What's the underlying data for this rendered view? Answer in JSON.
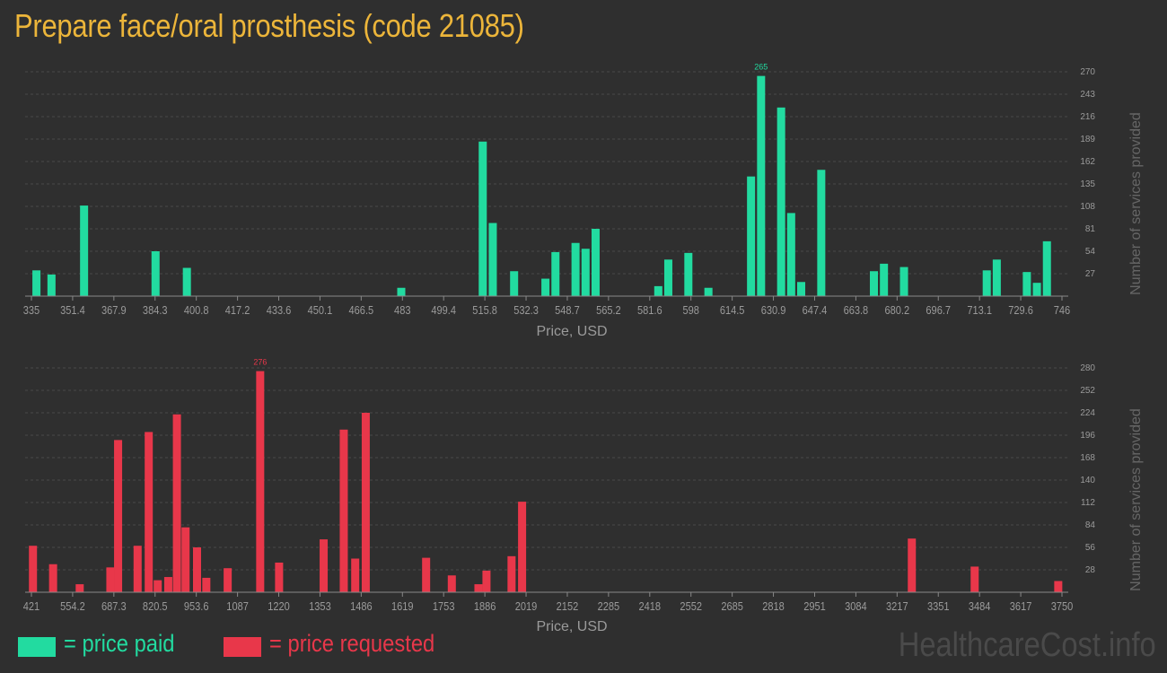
{
  "title": "Prepare face/oral prosthesis (code 21085)",
  "colors": {
    "paid": "#22dba0",
    "requested": "#e8374a",
    "title": "#ecb53a",
    "axis_text": "#9a9a9a",
    "grid": "#4a4a4a",
    "background": "#2f2f2f"
  },
  "legend": {
    "paid_label": "= price paid",
    "requested_label": "= price requested"
  },
  "watermark": "HealthcareCost.info",
  "chart_data": [
    {
      "type": "bar",
      "name": "price paid",
      "color": "#22dba0",
      "xlabel": "Price, USD",
      "ylabel": "Number of services provided",
      "xlim": [
        335,
        746
      ],
      "ylim": [
        0,
        270
      ],
      "grid": true,
      "x_ticks": [
        "335",
        "351.4",
        "367.9",
        "384.3",
        "400.8",
        "417.2",
        "433.6",
        "450.1",
        "466.5",
        "483",
        "499.4",
        "515.8",
        "532.3",
        "548.7",
        "565.2",
        "581.6",
        "598",
        "614.5",
        "630.9",
        "647.4",
        "663.8",
        "680.2",
        "696.7",
        "713.1",
        "729.6",
        "746"
      ],
      "y_ticks": [
        "27",
        "54",
        "81",
        "108",
        "135",
        "162",
        "189",
        "216",
        "243",
        "270"
      ],
      "peak_label": "265",
      "bars": [
        {
          "x": 337,
          "y": 31
        },
        {
          "x": 343,
          "y": 26
        },
        {
          "x": 356,
          "y": 109
        },
        {
          "x": 384.5,
          "y": 54
        },
        {
          "x": 397,
          "y": 34
        },
        {
          "x": 482.5,
          "y": 10
        },
        {
          "x": 515,
          "y": 186
        },
        {
          "x": 519,
          "y": 88
        },
        {
          "x": 527.5,
          "y": 30
        },
        {
          "x": 540,
          "y": 21
        },
        {
          "x": 544,
          "y": 53
        },
        {
          "x": 552,
          "y": 64
        },
        {
          "x": 556,
          "y": 57
        },
        {
          "x": 560,
          "y": 81
        },
        {
          "x": 585,
          "y": 12
        },
        {
          "x": 589,
          "y": 44
        },
        {
          "x": 597,
          "y": 52
        },
        {
          "x": 605,
          "y": 10
        },
        {
          "x": 622,
          "y": 144
        },
        {
          "x": 626,
          "y": 265
        },
        {
          "x": 634,
          "y": 227
        },
        {
          "x": 638,
          "y": 100
        },
        {
          "x": 642,
          "y": 17
        },
        {
          "x": 650,
          "y": 152
        },
        {
          "x": 671,
          "y": 30
        },
        {
          "x": 675,
          "y": 39
        },
        {
          "x": 683,
          "y": 35
        },
        {
          "x": 716,
          "y": 31
        },
        {
          "x": 720,
          "y": 44
        },
        {
          "x": 732,
          "y": 29
        },
        {
          "x": 736,
          "y": 16
        },
        {
          "x": 740,
          "y": 66
        }
      ]
    },
    {
      "type": "bar",
      "name": "price requested",
      "color": "#e8374a",
      "xlabel": "Price, USD",
      "ylabel": "Number of services provided",
      "xlim": [
        421,
        3750
      ],
      "ylim": [
        0,
        280
      ],
      "grid": true,
      "x_ticks": [
        "421",
        "554.2",
        "687.3",
        "820.5",
        "953.6",
        "1087",
        "1220",
        "1353",
        "1486",
        "1619",
        "1753",
        "1886",
        "2019",
        "2152",
        "2285",
        "2418",
        "2552",
        "2685",
        "2818",
        "2951",
        "3084",
        "3217",
        "3351",
        "3484",
        "3617",
        "3750"
      ],
      "y_ticks": [
        "28",
        "56",
        "84",
        "112",
        "140",
        "168",
        "196",
        "224",
        "252",
        "280"
      ],
      "peak_label": "276",
      "bars": [
        {
          "x": 426,
          "y": 58
        },
        {
          "x": 491,
          "y": 35
        },
        {
          "x": 577,
          "y": 10
        },
        {
          "x": 676,
          "y": 31
        },
        {
          "x": 701,
          "y": 190
        },
        {
          "x": 764,
          "y": 58
        },
        {
          "x": 800,
          "y": 200
        },
        {
          "x": 829,
          "y": 15
        },
        {
          "x": 863,
          "y": 19
        },
        {
          "x": 891,
          "y": 222
        },
        {
          "x": 919,
          "y": 81
        },
        {
          "x": 956,
          "y": 56
        },
        {
          "x": 986,
          "y": 18
        },
        {
          "x": 1055,
          "y": 30
        },
        {
          "x": 1160,
          "y": 276
        },
        {
          "x": 1221,
          "y": 37
        },
        {
          "x": 1365,
          "y": 66
        },
        {
          "x": 1430,
          "y": 203
        },
        {
          "x": 1467,
          "y": 42
        },
        {
          "x": 1501,
          "y": 224
        },
        {
          "x": 1696,
          "y": 43
        },
        {
          "x": 1779,
          "y": 21
        },
        {
          "x": 1865,
          "y": 10
        },
        {
          "x": 1891,
          "y": 27
        },
        {
          "x": 1972,
          "y": 45
        },
        {
          "x": 2006,
          "y": 113
        },
        {
          "x": 3265,
          "y": 67
        },
        {
          "x": 3468,
          "y": 32
        },
        {
          "x": 3738,
          "y": 14
        }
      ]
    }
  ]
}
